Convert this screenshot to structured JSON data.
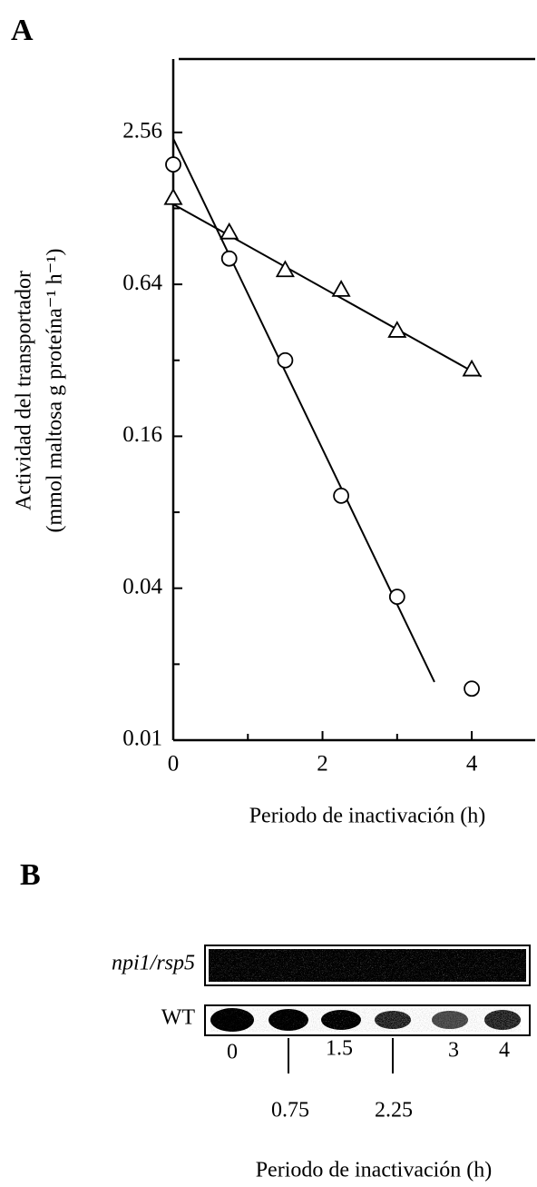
{
  "panel_labels": [
    "A",
    "B"
  ],
  "chart_data": {
    "type": "scatter",
    "xlabel": "Periodo de inactivación (h)",
    "ylabel": [
      "Actividad del transportador",
      "(mmol maltosa g proteína⁻¹ h⁻¹)"
    ],
    "xlim": [
      0,
      4.85
    ],
    "xticks": [
      0,
      2,
      4
    ],
    "xminorticks": [
      1,
      3
    ],
    "ylim": [
      0.01,
      5
    ],
    "yscale": "log",
    "yticks": [
      0.01,
      0.04,
      0.16,
      0.64,
      2.56
    ],
    "yminorticks": [
      0.02,
      0.08,
      0.32,
      1.28
    ],
    "series": [
      {
        "marker": "circle",
        "color": "#000000",
        "x": [
          0,
          0.75,
          1.5,
          2.25,
          3,
          4
        ],
        "values": [
          1.91,
          0.81,
          0.32,
          0.093,
          0.037,
          0.016
        ],
        "fit": {
          "x": [
            0,
            3.5
          ],
          "values": [
            2.42,
            0.017
          ]
        }
      },
      {
        "marker": "triangle",
        "color": "#000000",
        "x": [
          0,
          0.75,
          1.5,
          2.25,
          3,
          4
        ],
        "values": [
          1.41,
          1.03,
          0.73,
          0.61,
          0.42,
          0.295
        ],
        "fit": {
          "x": [
            0,
            4.13
          ],
          "values": [
            1.33,
            0.276
          ]
        }
      }
    ]
  },
  "blot": {
    "rows": [
      "npi1/rsp5",
      "WT"
    ],
    "lane_labels": [
      "0",
      "0.75",
      "1.5",
      "2.25",
      "3",
      "4"
    ],
    "xlabel": "Periodo de inactivación (h)"
  }
}
